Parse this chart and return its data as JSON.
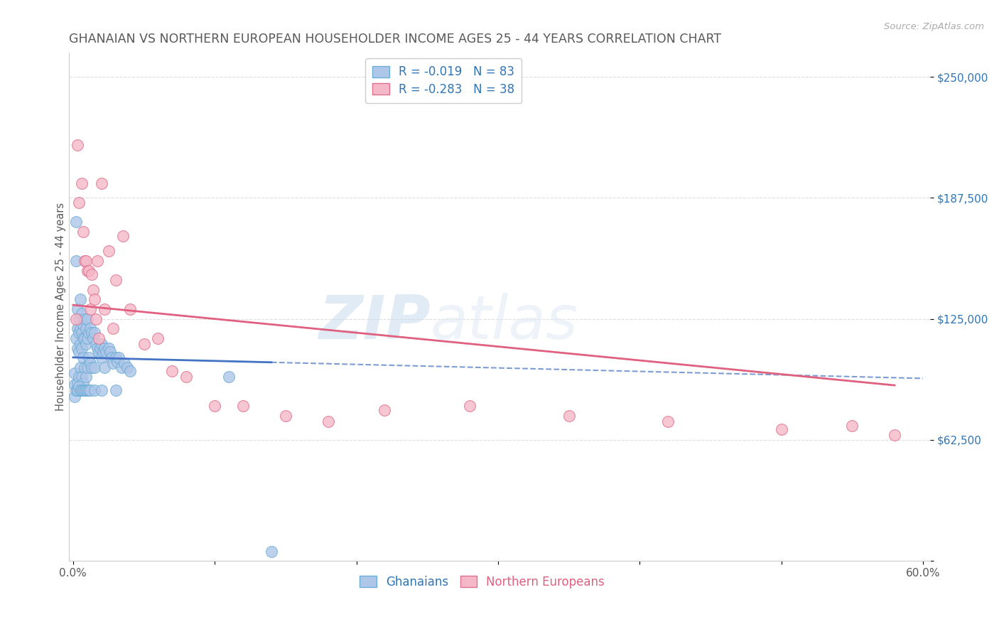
{
  "title": "GHANAIAN VS NORTHERN EUROPEAN HOUSEHOLDER INCOME AGES 25 - 44 YEARS CORRELATION CHART",
  "source_text": "Source: ZipAtlas.com",
  "ylabel": "Householder Income Ages 25 - 44 years",
  "xlim": [
    -0.003,
    0.605
  ],
  "ylim": [
    0,
    262500
  ],
  "yticks": [
    0,
    62500,
    125000,
    187500,
    250000
  ],
  "ytick_labels": [
    "",
    "$62,500",
    "$125,000",
    "$187,500",
    "$250,000"
  ],
  "xticks": [
    0.0,
    0.1,
    0.2,
    0.3,
    0.4,
    0.5,
    0.6
  ],
  "xtick_labels": [
    "0.0%",
    "",
    "",
    "",
    "",
    "",
    "60.0%"
  ],
  "background_color": "#ffffff",
  "grid_color": "#d0d0d0",
  "ghanaian_color": "#aec6e8",
  "ghanaian_edge_color": "#6baed6",
  "northern_european_color": "#f4b8c8",
  "northern_european_edge_color": "#e07090",
  "trend_ghanaian_color": "#4472c4",
  "trend_northern_color": "#e06080",
  "R_ghanaian": -0.019,
  "N_ghanaian": 83,
  "R_northern": -0.283,
  "N_northern": 38,
  "title_color": "#595959",
  "title_fontsize": 12.5,
  "axis_label_color": "#595959",
  "ytick_label_color": "#2e75b6",
  "watermark_zip": "ZIP",
  "watermark_atlas": "atlas",
  "ghanaian_x": [
    0.001,
    0.001,
    0.001,
    0.002,
    0.002,
    0.002,
    0.002,
    0.003,
    0.003,
    0.003,
    0.003,
    0.003,
    0.004,
    0.004,
    0.004,
    0.004,
    0.005,
    0.005,
    0.005,
    0.005,
    0.005,
    0.006,
    0.006,
    0.006,
    0.006,
    0.007,
    0.007,
    0.007,
    0.007,
    0.008,
    0.008,
    0.008,
    0.009,
    0.009,
    0.009,
    0.01,
    0.01,
    0.01,
    0.011,
    0.011,
    0.012,
    0.012,
    0.013,
    0.013,
    0.014,
    0.015,
    0.015,
    0.016,
    0.017,
    0.018,
    0.019,
    0.02,
    0.02,
    0.021,
    0.022,
    0.022,
    0.023,
    0.025,
    0.026,
    0.027,
    0.028,
    0.03,
    0.031,
    0.032,
    0.034,
    0.036,
    0.038,
    0.04,
    0.003,
    0.004,
    0.005,
    0.006,
    0.007,
    0.008,
    0.009,
    0.01,
    0.011,
    0.012,
    0.015,
    0.02,
    0.03,
    0.11,
    0.14
  ],
  "ghanaian_y": [
    97000,
    91000,
    85000,
    175000,
    155000,
    115000,
    88000,
    130000,
    120000,
    110000,
    92000,
    88000,
    125000,
    118000,
    108000,
    95000,
    135000,
    120000,
    112000,
    100000,
    88000,
    128000,
    118000,
    110000,
    95000,
    122000,
    115000,
    105000,
    92000,
    125000,
    115000,
    100000,
    120000,
    112000,
    95000,
    125000,
    115000,
    100000,
    118000,
    105000,
    120000,
    102000,
    118000,
    100000,
    115000,
    118000,
    100000,
    112000,
    110000,
    108000,
    110000,
    112000,
    105000,
    108000,
    110000,
    100000,
    108000,
    110000,
    108000,
    105000,
    102000,
    105000,
    103000,
    105000,
    100000,
    102000,
    100000,
    98000,
    88000,
    90000,
    88000,
    88000,
    88000,
    88000,
    88000,
    88000,
    88000,
    88000,
    88000,
    88000,
    88000,
    95000,
    5000
  ],
  "northern_x": [
    0.002,
    0.003,
    0.004,
    0.006,
    0.007,
    0.008,
    0.009,
    0.01,
    0.011,
    0.012,
    0.013,
    0.014,
    0.015,
    0.016,
    0.017,
    0.018,
    0.02,
    0.022,
    0.025,
    0.028,
    0.03,
    0.035,
    0.04,
    0.05,
    0.06,
    0.07,
    0.08,
    0.1,
    0.12,
    0.15,
    0.18,
    0.22,
    0.28,
    0.35,
    0.42,
    0.5,
    0.55,
    0.58
  ],
  "northern_y": [
    125000,
    215000,
    185000,
    195000,
    170000,
    155000,
    155000,
    150000,
    150000,
    130000,
    148000,
    140000,
    135000,
    125000,
    155000,
    115000,
    195000,
    130000,
    160000,
    120000,
    145000,
    168000,
    130000,
    112000,
    115000,
    98000,
    95000,
    80000,
    80000,
    75000,
    72000,
    78000,
    80000,
    75000,
    72000,
    68000,
    70000,
    65000
  ]
}
